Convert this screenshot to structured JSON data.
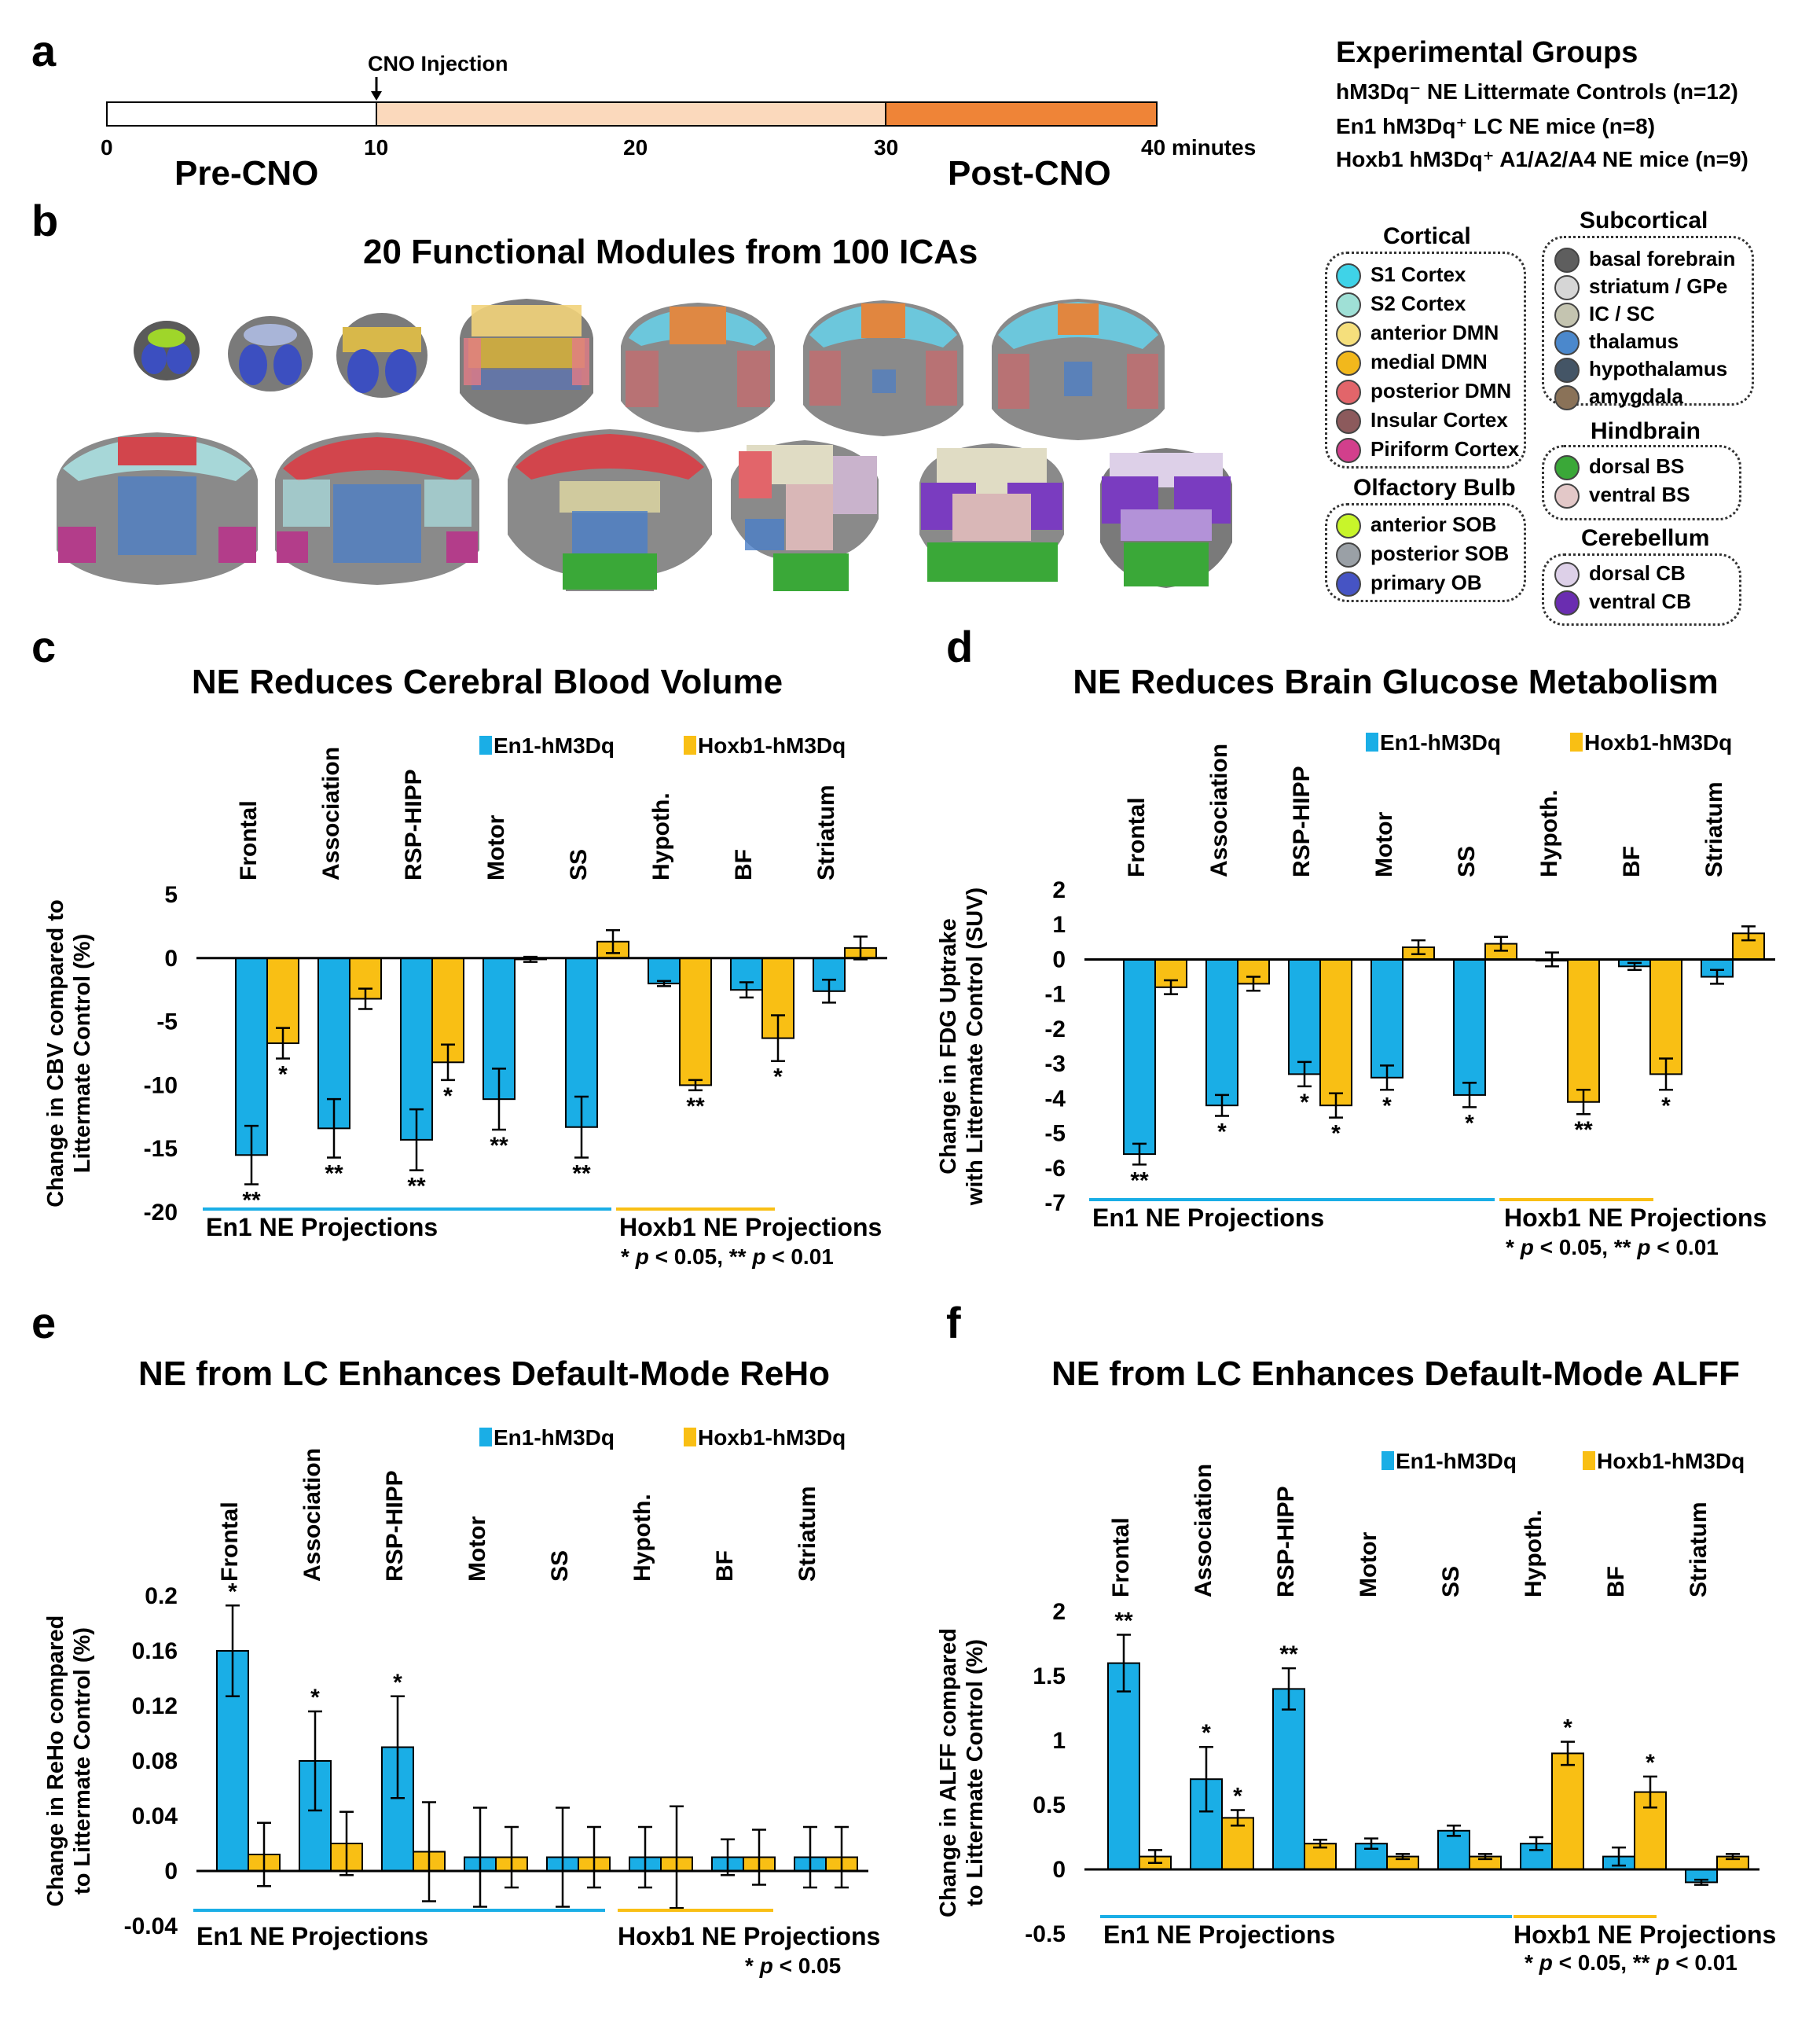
{
  "panel_a": {
    "label": "a",
    "injection_label": "CNO Injection",
    "ticks": [
      "0",
      "10",
      "20",
      "30",
      "40 minutes"
    ],
    "pre_label": "Pre-CNO",
    "post_label": "Post-CNO",
    "groups_title": "Experimental Groups",
    "groups": [
      "hM3Dq⁻ NE Littermate Controls (n=12)",
      "En1 hM3Dq⁺ LC NE mice (n=8)",
      "Hoxb1 hM3Dq⁺ A1/A2/A4 NE mice (n=9)"
    ]
  },
  "panel_b": {
    "label": "b",
    "title": "20 Functional Modules from 100 ICAs",
    "legend": {
      "cortical_title": "Cortical",
      "cortical": [
        {
          "name": "S1 Cortex",
          "color": "#3fd3e8"
        },
        {
          "name": "S2 Cortex",
          "color": "#9fe0d6"
        },
        {
          "name": "anterior DMN",
          "color": "#f5df7c"
        },
        {
          "name": "medial DMN",
          "color": "#f2b81c"
        },
        {
          "name": "posterior DMN",
          "color": "#e2656a"
        },
        {
          "name": "Insular Cortex",
          "color": "#8c5a5c"
        },
        {
          "name": "Piriform Cortex",
          "color": "#d23f8c"
        }
      ],
      "olfactory_title": "Olfactory Bulb",
      "olfactory": [
        {
          "name": "anterior SOB",
          "color": "#c8f52a"
        },
        {
          "name": "posterior SOB",
          "color": "#9aa0a6"
        },
        {
          "name": "primary OB",
          "color": "#4654c4"
        }
      ],
      "subcortical_title": "Subcortical",
      "subcortical": [
        {
          "name": "basal forebrain",
          "color": "#5e5e5e"
        },
        {
          "name": "striatum / GPe",
          "color": "#d6d6d6"
        },
        {
          "name": "IC / SC",
          "color": "#c4c4b0"
        },
        {
          "name": "thalamus",
          "color": "#4b88cc"
        },
        {
          "name": "hypothalamus",
          "color": "#445566"
        },
        {
          "name": "amygdala",
          "color": "#8a7258"
        }
      ],
      "hindbrain_title": "Hindbrain",
      "hindbrain": [
        {
          "name": "dorsal BS",
          "color": "#3aa838"
        },
        {
          "name": "ventral BS",
          "color": "#e3c8c8"
        }
      ],
      "cerebellum_title": "Cerebellum",
      "cerebellum": [
        {
          "name": "dorsal CB",
          "color": "#ddd0e8"
        },
        {
          "name": "ventral CB",
          "color": "#6a2db0"
        }
      ]
    }
  },
  "colors": {
    "en1": "#1aaee6",
    "hoxb1": "#f9bf14",
    "en1_line": "#1aaee6",
    "hoxb1_line": "#f9bf14"
  },
  "chart_data": [
    {
      "panel": "c",
      "type": "bar",
      "title": "NE Reduces Cerebral Blood Volume",
      "ylabel": [
        "Change in CBV compared to",
        "Littermate Control (%)"
      ],
      "categories": [
        "Frontal",
        "Association",
        "RSP-HIPP",
        "Motor",
        "SS",
        "Hypoth.",
        "BF",
        "Striatum"
      ],
      "series": [
        {
          "name": "En1-hM3Dq",
          "values": [
            -15.5,
            -13.4,
            -14.3,
            -11.1,
            -13.3,
            -2.0,
            -2.5,
            -2.6
          ],
          "errors": [
            2.3,
            2.3,
            2.4,
            2.4,
            2.4,
            0.2,
            0.6,
            0.9
          ]
        },
        {
          "name": "Hoxb1-hM3Dq",
          "values": [
            -6.7,
            -3.2,
            -8.2,
            -0.1,
            1.3,
            -10.0,
            -6.3,
            0.8
          ],
          "errors": [
            1.2,
            0.8,
            1.4,
            0.2,
            0.9,
            0.4,
            1.8,
            0.9
          ]
        }
      ],
      "en1_sig": [
        "**",
        "**",
        "**",
        "**",
        "**",
        "",
        "",
        ""
      ],
      "hoxb1_sig": [
        "*",
        "",
        "*",
        "",
        "",
        "**",
        "*",
        ""
      ],
      "ylim": [
        -20,
        5
      ],
      "yticks": [
        5,
        0,
        -5,
        -10,
        -15,
        -20
      ],
      "ytick_labels": [
        "5",
        "0",
        "-5",
        "-10",
        "-15",
        "-20"
      ],
      "en1_projection_label": "En1 NE Projections",
      "hoxb1_projection_label": "Hoxb1 NE Projections",
      "sig_note": [
        "* ",
        "p",
        " < 0.05, ** ",
        "p",
        " < 0.01"
      ]
    },
    {
      "panel": "d",
      "type": "bar",
      "title": "NE Reduces Brain Glucose Metabolism",
      "ylabel": [
        "Change in FDG Uptrake",
        "with Littermate Control (SUV)"
      ],
      "categories": [
        "Frontal",
        "Association",
        "RSP-HIPP",
        "Motor",
        "SS",
        "Hypoth.",
        "BF",
        "Striatum"
      ],
      "series": [
        {
          "name": "En1-hM3Dq",
          "values": [
            -5.6,
            -4.2,
            -3.3,
            -3.4,
            -3.9,
            0.0,
            -0.2,
            -0.5
          ],
          "errors": [
            0.3,
            0.3,
            0.35,
            0.35,
            0.35,
            0.2,
            0.1,
            0.2
          ]
        },
        {
          "name": "Hoxb1-hM3Dq",
          "values": [
            -0.8,
            -0.7,
            -4.2,
            0.35,
            0.45,
            -4.1,
            -3.3,
            0.75
          ],
          "errors": [
            0.2,
            0.2,
            0.35,
            0.2,
            0.2,
            0.35,
            0.45,
            0.2
          ]
        }
      ],
      "en1_sig": [
        "**",
        "*",
        "*",
        "*",
        "*",
        "",
        "",
        ""
      ],
      "hoxb1_sig": [
        "",
        "",
        "*",
        "",
        "",
        "**",
        "*",
        ""
      ],
      "ylim": [
        -7,
        2
      ],
      "yticks": [
        2,
        1,
        0,
        -1,
        -2,
        -3,
        -4,
        -5,
        -6,
        -7
      ],
      "ytick_labels": [
        "2",
        "1",
        "0",
        "-1",
        "-2",
        "-3",
        "-4",
        "-5",
        "-6",
        "-7"
      ],
      "en1_projection_label": "En1 NE Projections",
      "hoxb1_projection_label": "Hoxb1 NE Projections",
      "sig_note": [
        "* ",
        "p",
        " < 0.05, ** ",
        "p",
        " < 0.01"
      ]
    },
    {
      "panel": "e",
      "type": "bar",
      "title": "NE from LC Enhances Default-Mode ReHo",
      "ylabel": [
        "Change in ReHo compared",
        "to Littermate Control (%)"
      ],
      "categories": [
        "Frontal",
        "Association",
        "RSP-HIPP",
        "Motor",
        "SS",
        "Hypoth.",
        "BF",
        "Striatum"
      ],
      "series": [
        {
          "name": "En1-hM3Dq",
          "values": [
            0.16,
            0.08,
            0.09,
            0.01,
            0.01,
            0.01,
            0.01,
            0.01
          ],
          "errors": [
            0.033,
            0.036,
            0.037,
            0.036,
            0.036,
            0.022,
            0.013,
            0.022
          ]
        },
        {
          "name": "Hoxb1-hM3Dq",
          "values": [
            0.012,
            0.02,
            0.014,
            0.01,
            0.01,
            0.01,
            0.01,
            0.01
          ],
          "errors": [
            0.023,
            0.023,
            0.036,
            0.022,
            0.022,
            0.037,
            0.02,
            0.022
          ]
        }
      ],
      "en1_sig": [
        "*",
        "*",
        "*",
        "",
        "",
        "",
        "",
        ""
      ],
      "hoxb1_sig": [
        "",
        "",
        "",
        "",
        "",
        "",
        "",
        ""
      ],
      "ylim": [
        -0.04,
        0.2
      ],
      "yticks": [
        0.2,
        0.16,
        0.12,
        0.08,
        0.04,
        0,
        -0.04
      ],
      "ytick_labels": [
        "0.2",
        "0.16",
        "0.12",
        "0.08",
        "0.04",
        "0",
        "-0.04"
      ],
      "en1_projection_label": "En1 NE Projections",
      "hoxb1_projection_label": "Hoxb1 NE Projections",
      "sig_note": [
        "* ",
        "p",
        " < 0.05",
        "",
        ""
      ]
    },
    {
      "panel": "f",
      "type": "bar",
      "title": "NE from LC Enhances Default-Mode ALFF",
      "ylabel": [
        "Change in ALFF compared",
        "to Littermate Control (%)"
      ],
      "categories": [
        "Frontal",
        "Association",
        "RSP-HIPP",
        "Motor",
        "SS",
        "Hypoth.",
        "BF",
        "Striatum"
      ],
      "series": [
        {
          "name": "En1-hM3Dq",
          "values": [
            1.6,
            0.7,
            1.4,
            0.2,
            0.3,
            0.2,
            0.1,
            -0.1
          ],
          "errors": [
            0.22,
            0.25,
            0.16,
            0.04,
            0.04,
            0.05,
            0.07,
            0.02
          ]
        },
        {
          "name": "Hoxb1-hM3Dq",
          "values": [
            0.1,
            0.4,
            0.2,
            0.1,
            0.1,
            0.9,
            0.6,
            0.1
          ],
          "errors": [
            0.05,
            0.06,
            0.03,
            0.02,
            0.02,
            0.09,
            0.12,
            0.02
          ]
        }
      ],
      "en1_sig": [
        "**",
        "*",
        "**",
        "",
        "",
        "",
        "",
        ""
      ],
      "hoxb1_sig": [
        "",
        "*",
        "",
        "",
        "",
        "*",
        "*",
        ""
      ],
      "ylim": [
        -0.5,
        2
      ],
      "yticks": [
        2,
        1.5,
        1,
        0.5,
        0,
        -0.5
      ],
      "ytick_labels": [
        "2",
        "1.5",
        "1",
        "0.5",
        "0",
        "-0.5"
      ],
      "en1_projection_label": "En1 NE Projections",
      "hoxb1_projection_label": "Hoxb1 NE Projections",
      "sig_note": [
        "* ",
        "p",
        " < 0.05, ** ",
        "p",
        " < 0.01"
      ]
    }
  ]
}
